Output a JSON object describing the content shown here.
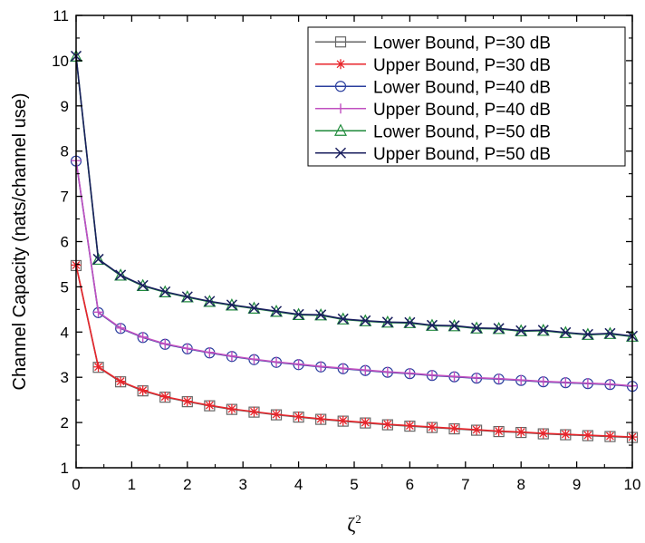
{
  "chart_data": {
    "type": "line",
    "title": "",
    "xlabel": "ζ",
    "xlabel_superscript": "2",
    "ylabel": "Channel Capacity (nats/channel use)",
    "xlim": [
      0,
      10
    ],
    "ylim": [
      1,
      11
    ],
    "xticks": [
      "0",
      "1",
      "2",
      "3",
      "4",
      "5",
      "6",
      "7",
      "8",
      "9",
      "10"
    ],
    "yticks": [
      "1",
      "2",
      "3",
      "4",
      "5",
      "6",
      "7",
      "8",
      "9",
      "10",
      "11"
    ],
    "legend_position": "top-right",
    "grid": false,
    "x": [
      0,
      0.4,
      0.8,
      1.2,
      1.6,
      2.0,
      2.4,
      2.8,
      3.2,
      3.6,
      4.0,
      4.4,
      4.8,
      5.2,
      5.6,
      6.0,
      6.4,
      6.8,
      7.2,
      7.6,
      8.0,
      8.4,
      8.8,
      9.2,
      9.6,
      10.0
    ],
    "series": [
      {
        "name": "Lower Bound, P=30 dB",
        "color": "#666666",
        "marker": "square",
        "values": [
          5.47,
          3.22,
          2.9,
          2.7,
          2.56,
          2.46,
          2.37,
          2.29,
          2.23,
          2.17,
          2.12,
          2.07,
          2.03,
          1.99,
          1.95,
          1.92,
          1.89,
          1.86,
          1.83,
          1.8,
          1.78,
          1.75,
          1.73,
          1.71,
          1.69,
          1.67
        ]
      },
      {
        "name": "Upper Bound, P=30 dB",
        "color": "#e8252b",
        "marker": "asterisk",
        "values": [
          5.48,
          3.23,
          2.91,
          2.71,
          2.57,
          2.47,
          2.38,
          2.3,
          2.24,
          2.18,
          2.13,
          2.08,
          2.04,
          2.0,
          1.96,
          1.93,
          1.9,
          1.87,
          1.84,
          1.81,
          1.79,
          1.76,
          1.74,
          1.72,
          1.7,
          1.68
        ]
      },
      {
        "name": "Lower Bound, P=40 dB",
        "color": "#2b3f9e",
        "marker": "circle",
        "values": [
          7.78,
          4.43,
          4.08,
          3.88,
          3.73,
          3.63,
          3.54,
          3.46,
          3.39,
          3.33,
          3.28,
          3.23,
          3.19,
          3.15,
          3.11,
          3.08,
          3.04,
          3.01,
          2.98,
          2.96,
          2.93,
          2.9,
          2.88,
          2.86,
          2.84,
          2.8
        ]
      },
      {
        "name": "Upper Bound, P=40 dB",
        "color": "#c050c0",
        "marker": "plus",
        "values": [
          7.79,
          4.44,
          4.09,
          3.89,
          3.74,
          3.64,
          3.55,
          3.47,
          3.4,
          3.34,
          3.29,
          3.24,
          3.2,
          3.16,
          3.12,
          3.09,
          3.05,
          3.02,
          2.99,
          2.97,
          2.94,
          2.91,
          2.89,
          2.87,
          2.85,
          2.81
        ]
      },
      {
        "name": "Lower Bound, P=50 dB",
        "color": "#1e8a3a",
        "marker": "triangle",
        "values": [
          10.09,
          5.6,
          5.25,
          5.02,
          4.88,
          4.77,
          4.67,
          4.59,
          4.52,
          4.45,
          4.38,
          4.37,
          4.28,
          4.24,
          4.21,
          4.2,
          4.14,
          4.13,
          4.08,
          4.07,
          4.02,
          4.03,
          3.98,
          3.94,
          3.96,
          3.9
        ]
      },
      {
        "name": "Upper Bound, P=50 dB",
        "color": "#1a1f5e",
        "marker": "x",
        "values": [
          10.1,
          5.61,
          5.26,
          5.03,
          4.89,
          4.78,
          4.68,
          4.6,
          4.53,
          4.46,
          4.39,
          4.38,
          4.29,
          4.25,
          4.22,
          4.21,
          4.15,
          4.14,
          4.09,
          4.08,
          4.03,
          4.04,
          3.99,
          3.95,
          3.97,
          3.91
        ]
      }
    ]
  }
}
